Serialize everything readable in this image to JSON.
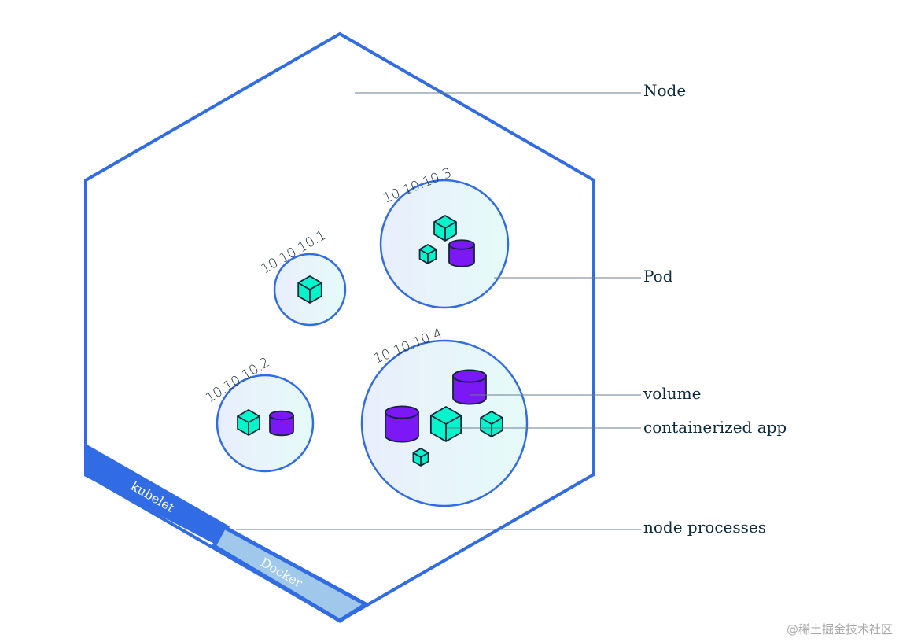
{
  "labels": {
    "node": "Node",
    "pod": "Pod",
    "volume": "volume",
    "containerized_app": "containerized app",
    "node_processes": "node processes"
  },
  "processes": {
    "kubelet": "kubelet",
    "docker": "Docker"
  },
  "pods": [
    {
      "ip": "10.10.10.1"
    },
    {
      "ip": "10.10.10.2"
    },
    {
      "ip": "10.10.10.3"
    },
    {
      "ip": "10.10.10.4"
    }
  ],
  "watermark": "@稀土掘金技术社区",
  "colors": {
    "node_border": "#326ce5",
    "kubelet": "#326ce5",
    "docker": "#a0c8ea",
    "container": "#05f4cc",
    "volume": "#7b18f5",
    "outline": "#13253a",
    "label_text": "#0d2a3e"
  }
}
